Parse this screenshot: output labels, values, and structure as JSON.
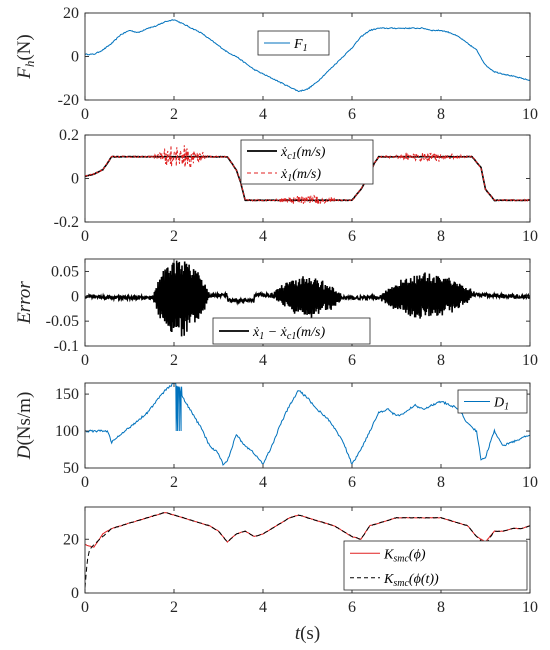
{
  "chart_data": [
    {
      "type": "line",
      "xlim": [
        0,
        10
      ],
      "ylim": [
        -20,
        20
      ],
      "xticks": [
        "0",
        "2",
        "4",
        "6",
        "8",
        "10"
      ],
      "yticks": [
        "20",
        "0",
        "-20"
      ],
      "ylabel_main": "F",
      "ylabel_sub": "h",
      "ylabel_unit": "(N)",
      "legend_position": "top-right",
      "series": [
        {
          "name": "F",
          "name_sub": "1",
          "color": "#0072BD",
          "x": [
            0,
            0.2,
            0.4,
            0.6,
            0.8,
            1.0,
            1.2,
            1.4,
            1.6,
            1.8,
            2.0,
            2.2,
            2.4,
            2.6,
            2.8,
            3.0,
            3.2,
            3.4,
            3.6,
            3.8,
            4.0,
            4.2,
            4.4,
            4.6,
            4.8,
            5.0,
            5.2,
            5.4,
            5.6,
            5.8,
            6.0,
            6.2,
            6.4,
            6.6,
            6.8,
            7.0,
            7.2,
            7.4,
            7.6,
            7.8,
            8.0,
            8.2,
            8.4,
            8.6,
            8.8,
            9.0,
            9.2,
            9.4,
            9.6,
            9.8,
            10.0
          ],
          "y": [
            1,
            1,
            3,
            6,
            10,
            12,
            11,
            13,
            14,
            16,
            17,
            15,
            13,
            11,
            8,
            5,
            2,
            0,
            -3,
            -6,
            -8,
            -10,
            -12,
            -14,
            -16,
            -15,
            -12,
            -8,
            -4,
            0,
            4,
            9,
            12,
            13,
            13,
            13,
            13,
            13,
            13,
            12,
            12,
            11,
            9,
            6,
            3,
            -4,
            -7,
            -8,
            -9,
            -10,
            -11
          ]
        }
      ]
    },
    {
      "type": "line",
      "xlim": [
        0,
        10
      ],
      "ylim": [
        -0.2,
        0.2
      ],
      "xticks": [
        "0",
        "2",
        "4",
        "6",
        "8",
        "10"
      ],
      "yticks": [
        "0.2",
        "0",
        "-0.2"
      ],
      "legend_position": "top-center",
      "series": [
        {
          "name": "ẋ",
          "name_sub": "c1",
          "name_unit": "(m/s)",
          "color": "#000000",
          "style": "solid",
          "x": [
            0,
            0.2,
            0.4,
            0.5,
            0.6,
            3.2,
            3.4,
            3.5,
            3.6,
            6.0,
            6.2,
            6.4,
            6.5,
            6.6,
            8.7,
            8.9,
            9.0,
            9.2,
            10.0
          ],
          "y": [
            0.01,
            0.02,
            0.04,
            0.07,
            0.1,
            0.1,
            0.04,
            -0.02,
            -0.1,
            -0.1,
            -0.05,
            0.02,
            0.07,
            0.1,
            0.1,
            0.05,
            -0.05,
            -0.1,
            -0.1
          ]
        },
        {
          "name": "ẋ",
          "name_sub": "1",
          "name_unit": "(m/s)",
          "color": "#E02020",
          "style": "dashed",
          "oscillation_bands": [
            {
              "x": [
                1.5,
                2.8
              ],
              "amplitude": 0.06
            },
            {
              "x": [
                4.2,
                5.8
              ],
              "amplitude": 0.025
            },
            {
              "x": [
                6.8,
                8.6
              ],
              "amplitude": 0.025
            }
          ]
        }
      ]
    },
    {
      "type": "line",
      "xlim": [
        0,
        10
      ],
      "ylim": [
        -0.1,
        0.075
      ],
      "xticks": [
        "0",
        "2",
        "4",
        "6",
        "8",
        "10"
      ],
      "yticks": [
        "0.05",
        "0",
        "-0.05",
        "-0.1"
      ],
      "ylabel": "Error",
      "legend_position": "bottom-center",
      "series": [
        {
          "name": "ẋ",
          "name_sub": "1",
          "name_mid": " − ẋ",
          "name_sub2": "c1",
          "name_unit": "(m/s)",
          "color": "#000000",
          "oscillation_bands": [
            {
              "x": [
                1.5,
                2.8
              ],
              "amplitude": 0.08
            },
            {
              "x": [
                4.2,
                5.8
              ],
              "amplitude": 0.04
            },
            {
              "x": [
                6.6,
                8.8
              ],
              "amplitude": 0.045
            }
          ]
        }
      ]
    },
    {
      "type": "line",
      "xlim": [
        0,
        10
      ],
      "ylim": [
        50,
        165
      ],
      "xticks": [
        "0",
        "2",
        "4",
        "6",
        "8",
        "10"
      ],
      "yticks": [
        "150",
        "100",
        "50"
      ],
      "ylabel_main": "D",
      "ylabel_unit": "(Ns/m)",
      "legend_position": "top-right",
      "series": [
        {
          "name": "D",
          "name_sub": "1",
          "color": "#0072BD",
          "x": [
            0,
            0.5,
            0.6,
            0.8,
            1.0,
            1.2,
            1.4,
            1.6,
            1.8,
            2.0,
            2.1,
            2.2,
            2.3,
            2.4,
            2.6,
            2.8,
            3.0,
            3.1,
            3.2,
            3.4,
            3.6,
            3.8,
            4.0,
            4.2,
            4.4,
            4.6,
            4.8,
            5.0,
            5.2,
            5.4,
            5.6,
            5.8,
            6.0,
            6.2,
            6.4,
            6.6,
            6.8,
            7.0,
            7.2,
            7.4,
            7.6,
            7.8,
            8.0,
            8.2,
            8.4,
            8.6,
            8.8,
            8.9,
            9.0,
            9.2,
            9.4,
            9.6,
            9.8,
            10.0
          ],
          "y": [
            100,
            100,
            85,
            95,
            105,
            115,
            125,
            140,
            155,
            165,
            160,
            145,
            135,
            125,
            105,
            80,
            70,
            55,
            60,
            95,
            80,
            70,
            55,
            80,
            110,
            135,
            155,
            145,
            130,
            120,
            105,
            85,
            55,
            75,
            100,
            125,
            130,
            120,
            125,
            135,
            130,
            135,
            140,
            135,
            130,
            110,
            100,
            60,
            65,
            100,
            80,
            85,
            90,
            95
          ]
        }
      ]
    },
    {
      "type": "line",
      "xlim": [
        0,
        10
      ],
      "ylim": [
        0,
        32
      ],
      "xticks": [
        "0",
        "2",
        "4",
        "6",
        "8",
        "10"
      ],
      "yticks": [
        "20",
        "0"
      ],
      "xlabel_main": "t",
      "xlabel_unit": "(s)",
      "legend_position": "bottom-right",
      "series": [
        {
          "name": "K",
          "name_sub": "smc",
          "name_arg": "(ϕ)",
          "color": "#E02020",
          "style": "solid",
          "x": [
            0,
            0.2,
            0.4,
            0.6,
            0.8,
            1.0,
            1.2,
            1.4,
            1.6,
            1.8,
            2.0,
            2.2,
            2.4,
            2.6,
            2.8,
            3.0,
            3.2,
            3.4,
            3.6,
            3.8,
            4.0,
            4.2,
            4.4,
            4.6,
            4.8,
            5.0,
            5.2,
            5.4,
            5.6,
            5.8,
            6.0,
            6.2,
            6.4,
            6.6,
            6.8,
            7.0,
            7.2,
            7.4,
            7.6,
            7.8,
            8.0,
            8.2,
            8.4,
            8.6,
            8.8,
            9.0,
            9.2,
            9.4,
            9.6,
            9.8,
            10.0
          ],
          "y": [
            18,
            17,
            22,
            24,
            25,
            26,
            27,
            28,
            29,
            30,
            29,
            28,
            27,
            26,
            25,
            23,
            19,
            22,
            23,
            21,
            22,
            24,
            26,
            28,
            29,
            28,
            27,
            26,
            25,
            23,
            21,
            20,
            25,
            26,
            27,
            28,
            28,
            28,
            28,
            28,
            28,
            27,
            26,
            25,
            21,
            19,
            23,
            23,
            24,
            24,
            25
          ]
        },
        {
          "name": "K",
          "name_sub": "smc",
          "name_arg": "(ϕ(t))",
          "color": "#000000",
          "style": "dashed",
          "x": [
            0,
            0.05,
            0.1,
            0.2,
            0.4,
            0.6,
            0.8,
            1.0,
            1.2,
            1.4,
            1.6,
            1.8,
            2.0,
            2.2,
            2.4,
            2.6,
            2.8,
            3.0,
            3.2,
            3.4,
            3.6,
            3.8,
            4.0,
            4.2,
            4.4,
            4.6,
            4.8,
            5.0,
            5.2,
            5.4,
            5.6,
            5.8,
            6.0,
            6.2,
            6.4,
            6.6,
            6.8,
            7.0,
            7.2,
            7.4,
            7.6,
            7.8,
            8.0,
            8.2,
            8.4,
            8.6,
            8.8,
            9.0,
            9.2,
            9.4,
            9.6,
            9.8,
            10.0
          ],
          "y": [
            2,
            12,
            16,
            18,
            21,
            24,
            25,
            26,
            27,
            28,
            29,
            30,
            29,
            28,
            27,
            26,
            25,
            23,
            19,
            22,
            23,
            21,
            22,
            24,
            26,
            28,
            29,
            28,
            27,
            26,
            25,
            23,
            21,
            20,
            25,
            26,
            27,
            28,
            28,
            28,
            28,
            28,
            28,
            27,
            26,
            25,
            21,
            18,
            23,
            23,
            24,
            24,
            25
          ]
        }
      ]
    }
  ]
}
